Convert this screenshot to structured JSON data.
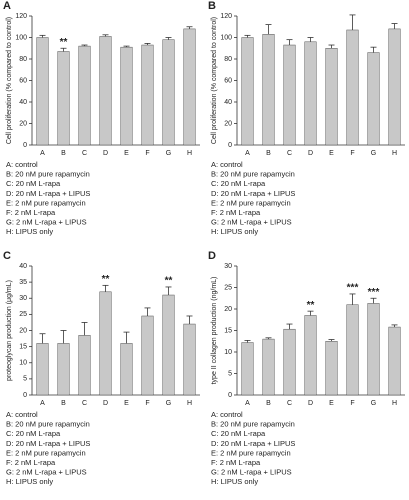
{
  "chart_data": [
    {
      "type": "bar",
      "panel": "A",
      "ylabel": "Cell proliferation (% compared to control)",
      "categories": [
        "A",
        "B",
        "C",
        "D",
        "E",
        "F",
        "G",
        "H"
      ],
      "values": [
        100,
        87,
        92,
        101,
        91,
        93,
        98,
        108
      ],
      "errors": [
        2,
        3,
        1,
        1.5,
        1,
        1.5,
        2,
        2
      ],
      "ylim": [
        0,
        120
      ],
      "yticks": [
        0,
        20,
        40,
        60,
        80,
        100,
        120
      ],
      "color": "#c8c8c8",
      "annotations": [
        {
          "index": 1,
          "text": "**"
        }
      ],
      "notes": [
        "A: control",
        "B: 20 nM pure rapamycin",
        "C: 20 nM L-rapa",
        "D: 20 nM L-rapa + LIPUS",
        "E: 2 nM pure rapamycin",
        "F: 2 nM L-rapa",
        "G: 2 nM L-rapa + LIPUS",
        "H: LIPUS only"
      ]
    },
    {
      "type": "bar",
      "panel": "B",
      "ylabel": "Cell proliferation (% compared to control)",
      "categories": [
        "A",
        "B",
        "C",
        "D",
        "E",
        "F",
        "G",
        "H"
      ],
      "values": [
        100,
        103,
        93,
        96,
        90,
        107,
        86,
        108
      ],
      "errors": [
        2,
        9,
        5,
        4,
        3,
        14,
        5,
        5
      ],
      "ylim": [
        0,
        120
      ],
      "yticks": [
        0,
        20,
        40,
        60,
        80,
        100,
        120
      ],
      "color": "#c8c8c8",
      "notes": [
        "A: control",
        "B: 20 nM pure rapamycin",
        "C: 20 nM L-rapa",
        "D: 20 nM L-rapa + LIPUS",
        "E: 2 nM pure rapamycin",
        "F: 2 nM L-rapa",
        "G: 2 nM L-rapa + LIPUS",
        "H: LIPUS only"
      ]
    },
    {
      "type": "bar",
      "panel": "C",
      "ylabel": "proteoglycan production (μg/mL)",
      "categories": [
        "A",
        "B",
        "C",
        "D",
        "E",
        "F",
        "G",
        "H"
      ],
      "values": [
        16,
        16,
        18.5,
        32,
        16,
        24.5,
        31,
        22
      ],
      "errors": [
        3,
        4,
        4,
        2,
        3.5,
        2.5,
        2.5,
        2.5
      ],
      "ylim": [
        0,
        40
      ],
      "yticks": [
        0,
        5,
        10,
        15,
        20,
        25,
        30,
        35,
        40
      ],
      "color": "#c8c8c8",
      "annotations": [
        {
          "index": 3,
          "text": "**"
        },
        {
          "index": 6,
          "text": "**"
        }
      ],
      "notes": [
        "A: control",
        "B: 20 nM pure rapamycin",
        "C: 20 nM L-rapa",
        "D: 20 nM L-rapa + LIPUS",
        "E: 2 nM pure rapamycin",
        "F: 2 nM L-rapa",
        "G: 2 nM L-rapa + LIPUS",
        "H: LIPUS only"
      ]
    },
    {
      "type": "bar",
      "panel": "D",
      "ylabel": "type II collagen production (ng/mL)",
      "categories": [
        "A",
        "B",
        "C",
        "D",
        "E",
        "F",
        "G",
        "H"
      ],
      "values": [
        12.2,
        13,
        15.3,
        18.5,
        12.5,
        21,
        21.3,
        15.8
      ],
      "errors": [
        0.5,
        0.3,
        1.2,
        1,
        0.4,
        2.5,
        1.2,
        0.5
      ],
      "ylim": [
        0,
        30
      ],
      "yticks": [
        0,
        5,
        10,
        15,
        20,
        25,
        30
      ],
      "color": "#c8c8c8",
      "annotations": [
        {
          "index": 3,
          "text": "**"
        },
        {
          "index": 5,
          "text": "***"
        },
        {
          "index": 6,
          "text": "***"
        }
      ],
      "notes": [
        "A: control",
        "B: 20 nM pure rapamycin",
        "C: 20 nM L-rapa",
        "D: 20 nM L-rapa + LIPUS",
        "E: 2 nM pure rapamycin",
        "F: 2 nM L-rapa",
        "G: 2 nM L-rapa + LIPUS",
        "H: LIPUS only"
      ]
    }
  ]
}
